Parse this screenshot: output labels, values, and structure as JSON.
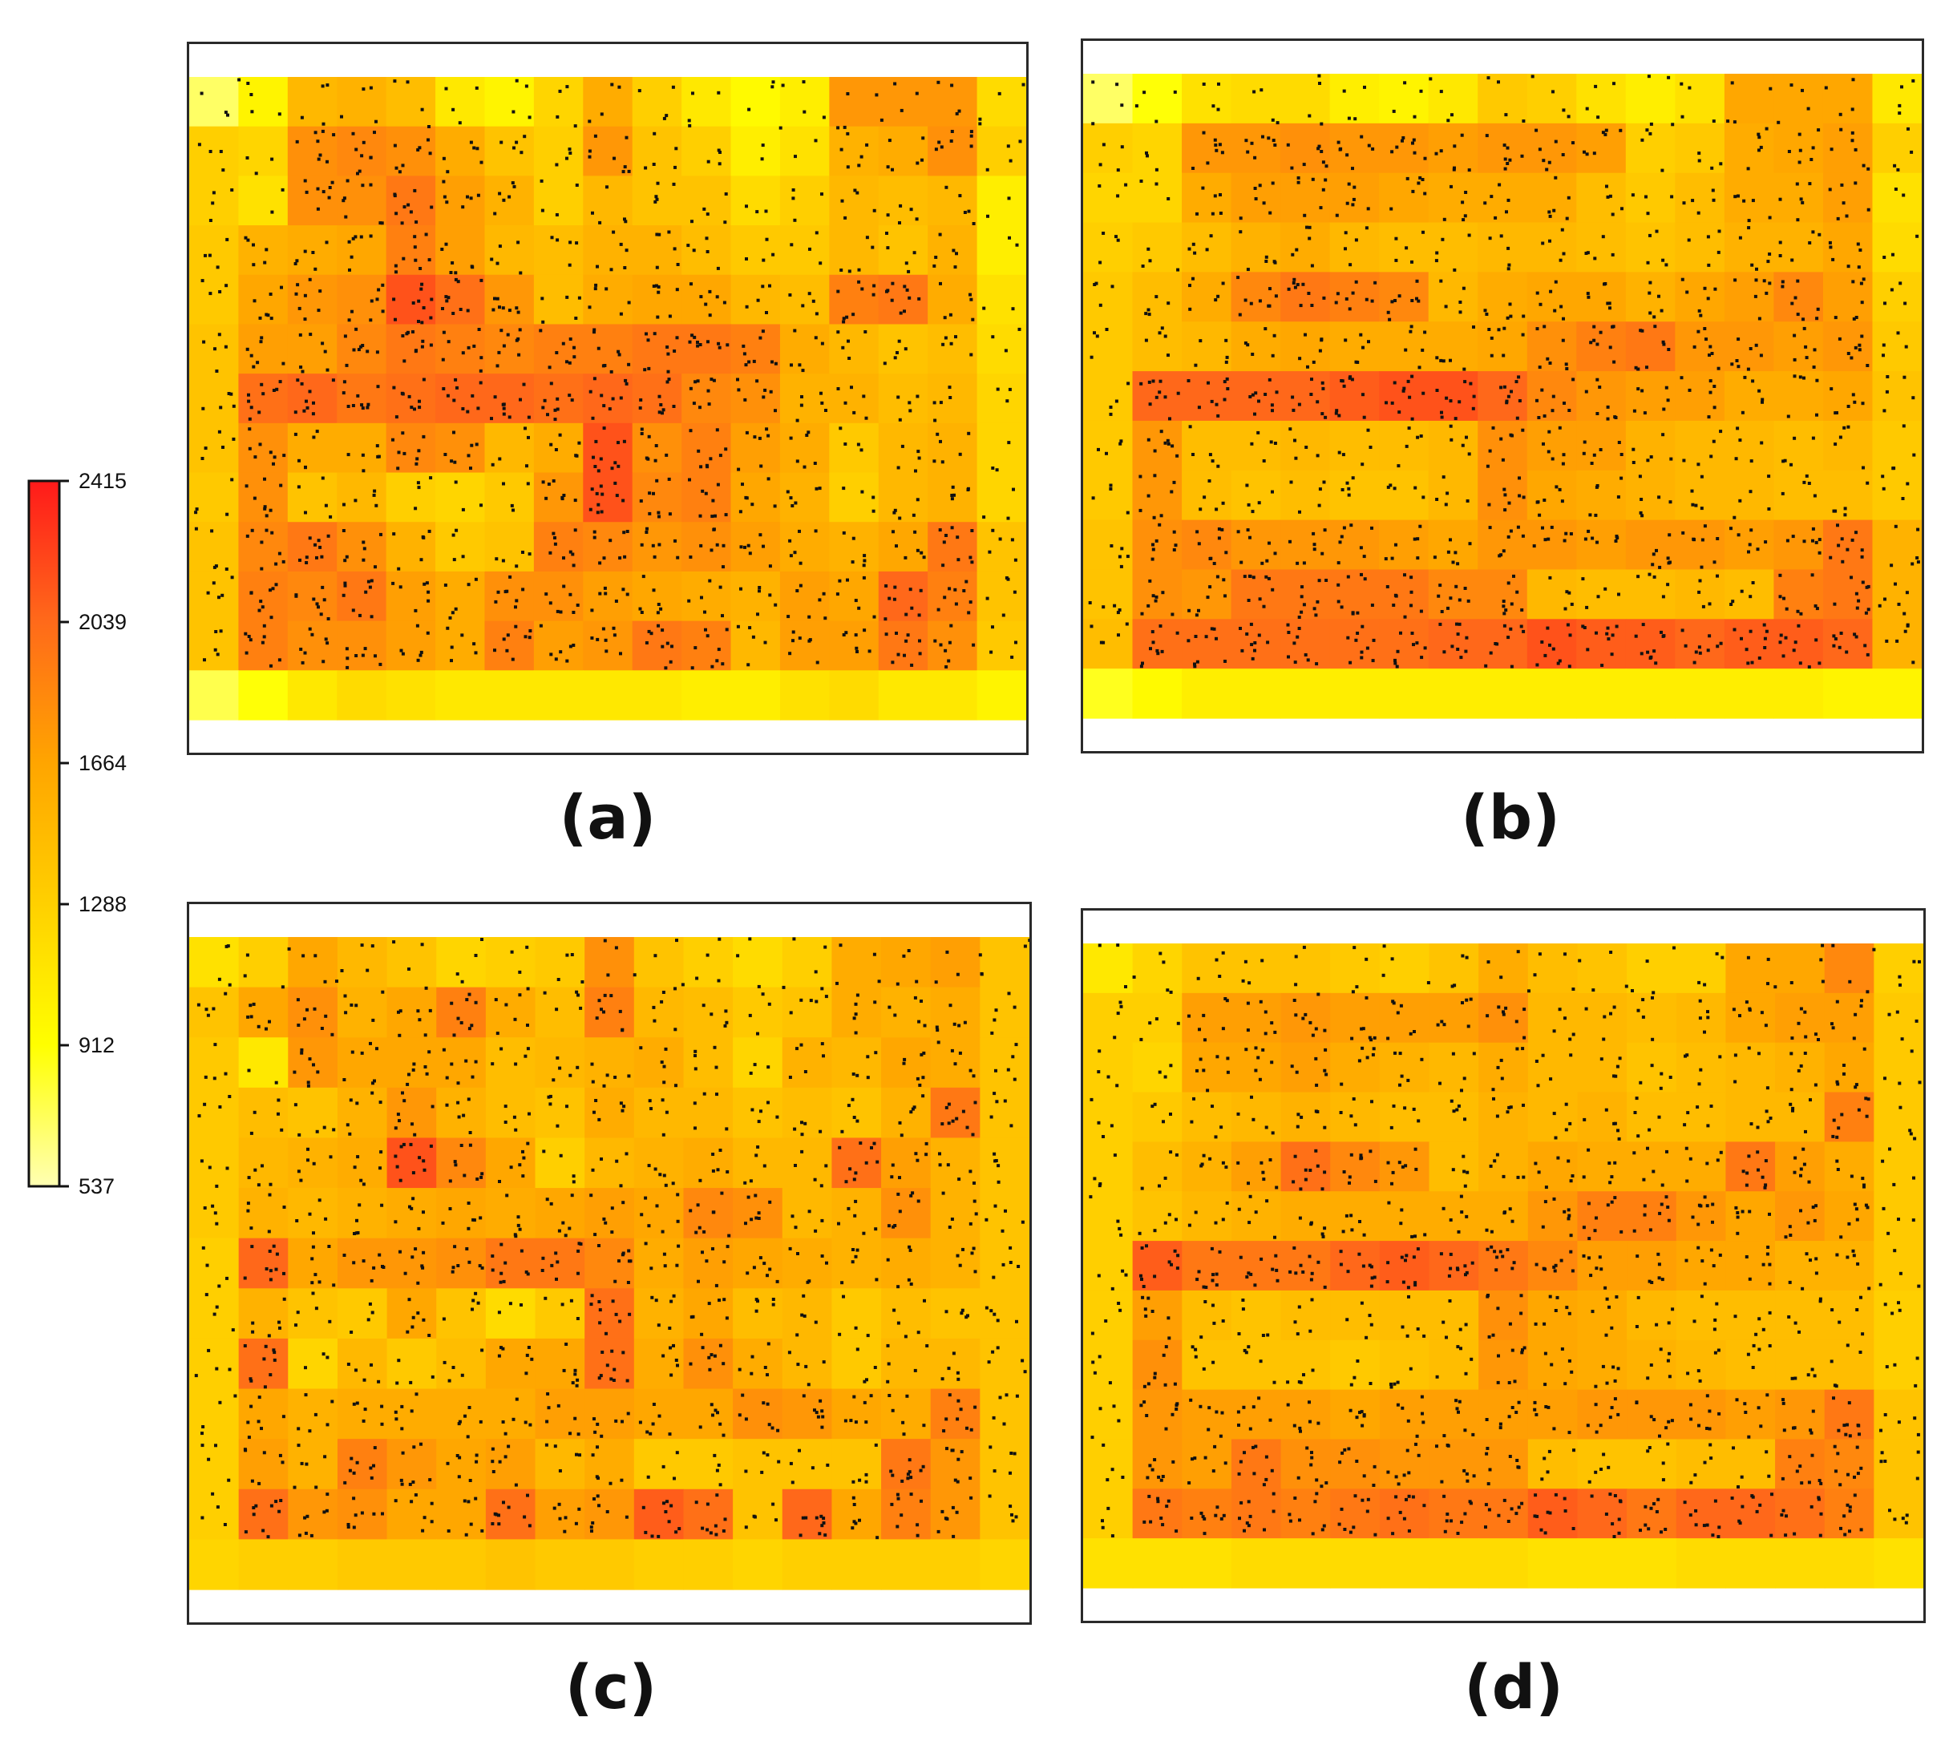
{
  "colorbar": {
    "min": 537,
    "max": 2415,
    "ticks": [
      "2415",
      "2039",
      "1664",
      "1288",
      "912",
      "537"
    ],
    "colors": [
      "#ffffb3",
      "#ffff00",
      "#ffd000",
      "#ffa500",
      "#ff6a1a",
      "#ff1a1a"
    ]
  },
  "chart_data": [
    {
      "type": "heatmap",
      "label": "(a)",
      "ncols": 17,
      "nrows": 13,
      "range": [
        537,
        2415
      ],
      "values": [
        [
          700,
          1000,
          1500,
          1550,
          1450,
          1100,
          1000,
          1250,
          1600,
          1300,
          1100,
          950,
          1050,
          1750,
          1750,
          1750,
          1200
        ],
        [
          1300,
          1250,
          1800,
          1850,
          1800,
          1600,
          1400,
          1300,
          1750,
          1400,
          1300,
          1050,
          1150,
          1550,
          1600,
          1800,
          1300
        ],
        [
          1300,
          1150,
          1800,
          1800,
          1950,
          1700,
          1550,
          1300,
          1500,
          1400,
          1400,
          1200,
          1300,
          1500,
          1450,
          1500,
          1050
        ],
        [
          1350,
          1550,
          1600,
          1650,
          1900,
          1700,
          1500,
          1450,
          1550,
          1550,
          1450,
          1350,
          1350,
          1500,
          1400,
          1550,
          1050
        ],
        [
          1350,
          1650,
          1750,
          1800,
          2150,
          2000,
          1750,
          1450,
          1600,
          1650,
          1650,
          1500,
          1450,
          1900,
          1950,
          1600,
          1150
        ],
        [
          1400,
          1700,
          1700,
          1850,
          1950,
          1900,
          1850,
          1900,
          1900,
          1950,
          1950,
          1900,
          1600,
          1500,
          1400,
          1450,
          1200
        ],
        [
          1400,
          2000,
          2050,
          1950,
          2000,
          2050,
          2050,
          2000,
          2050,
          2000,
          1850,
          1800,
          1550,
          1550,
          1450,
          1500,
          1250
        ],
        [
          1400,
          1800,
          1600,
          1600,
          1850,
          1800,
          1500,
          1600,
          2150,
          1800,
          1900,
          1700,
          1600,
          1350,
          1500,
          1550,
          1250
        ],
        [
          1350,
          1800,
          1400,
          1500,
          1300,
          1250,
          1350,
          1750,
          2150,
          1850,
          1900,
          1650,
          1550,
          1300,
          1500,
          1550,
          1250
        ],
        [
          1400,
          1850,
          1950,
          1800,
          1550,
          1350,
          1400,
          1900,
          1850,
          1750,
          1800,
          1700,
          1600,
          1550,
          1650,
          1950,
          1400
        ],
        [
          1400,
          1900,
          1850,
          1950,
          1700,
          1600,
          1800,
          1800,
          1700,
          1650,
          1600,
          1550,
          1700,
          1650,
          2050,
          1900,
          1400
        ],
        [
          1400,
          1900,
          1800,
          1800,
          1700,
          1600,
          1900,
          1700,
          1750,
          1950,
          1900,
          1500,
          1700,
          1700,
          1950,
          1800,
          1350
        ],
        [
          750,
          900,
          1100,
          1200,
          1150,
          1100,
          1100,
          1100,
          1100,
          1100,
          1050,
          1050,
          1150,
          1200,
          1100,
          1100,
          1000
        ]
      ]
    },
    {
      "type": "heatmap",
      "label": "(b)",
      "ncols": 17,
      "nrows": 13,
      "range": [
        537,
        2415
      ],
      "values": [
        [
          700,
          900,
          1150,
          1200,
          1200,
          1050,
          1000,
          1100,
          1350,
          1300,
          1150,
          1050,
          1150,
          1650,
          1650,
          1650,
          1100
        ],
        [
          1300,
          1250,
          1750,
          1750,
          1800,
          1750,
          1750,
          1700,
          1750,
          1750,
          1700,
          1300,
          1350,
          1600,
          1650,
          1700,
          1300
        ],
        [
          1250,
          1250,
          1600,
          1700,
          1700,
          1700,
          1650,
          1600,
          1600,
          1600,
          1450,
          1350,
          1450,
          1600,
          1600,
          1700,
          1150
        ],
        [
          1300,
          1350,
          1450,
          1550,
          1600,
          1500,
          1450,
          1450,
          1500,
          1500,
          1450,
          1400,
          1450,
          1550,
          1550,
          1650,
          1200
        ],
        [
          1350,
          1450,
          1600,
          1850,
          1950,
          1900,
          1850,
          1500,
          1600,
          1650,
          1650,
          1550,
          1650,
          1700,
          1850,
          1700,
          1300
        ],
        [
          1350,
          1450,
          1500,
          1600,
          1650,
          1600,
          1600,
          1600,
          1650,
          1800,
          1900,
          1950,
          1750,
          1750,
          1700,
          1750,
          1350
        ],
        [
          1350,
          2050,
          2050,
          2050,
          2050,
          2100,
          2150,
          2150,
          2050,
          1850,
          1750,
          1700,
          1700,
          1600,
          1600,
          1650,
          1400
        ],
        [
          1350,
          1750,
          1450,
          1450,
          1500,
          1450,
          1450,
          1500,
          1800,
          1700,
          1700,
          1550,
          1500,
          1500,
          1450,
          1500,
          1350
        ],
        [
          1350,
          1750,
          1450,
          1400,
          1450,
          1400,
          1400,
          1500,
          1800,
          1650,
          1600,
          1550,
          1500,
          1500,
          1450,
          1450,
          1350
        ],
        [
          1400,
          1800,
          1850,
          1750,
          1750,
          1750,
          1700,
          1650,
          1750,
          1750,
          1700,
          1750,
          1750,
          1700,
          1750,
          1950,
          1550
        ],
        [
          1400,
          1800,
          1750,
          1950,
          1950,
          1950,
          1950,
          1850,
          1850,
          1500,
          1450,
          1450,
          1500,
          1450,
          1900,
          1950,
          1550
        ],
        [
          1450,
          2000,
          2000,
          2000,
          2000,
          2000,
          2000,
          2050,
          2050,
          2150,
          2100,
          2100,
          2050,
          2100,
          2100,
          2050,
          1550
        ],
        [
          850,
          950,
          1050,
          1050,
          1050,
          1050,
          1050,
          1050,
          1050,
          1050,
          1050,
          1050,
          1050,
          1050,
          1050,
          1000,
          1000
        ]
      ]
    },
    {
      "type": "heatmap",
      "label": "(c)",
      "ncols": 17,
      "nrows": 13,
      "range": [
        537,
        2415
      ],
      "values": [
        [
          1150,
          1300,
          1650,
          1500,
          1400,
          1250,
          1300,
          1350,
          1800,
          1400,
          1300,
          1200,
          1300,
          1600,
          1650,
          1700,
          1400
        ],
        [
          1400,
          1650,
          1800,
          1550,
          1650,
          1900,
          1600,
          1450,
          1900,
          1500,
          1450,
          1350,
          1400,
          1600,
          1550,
          1600,
          1400
        ],
        [
          1350,
          1100,
          1750,
          1650,
          1650,
          1650,
          1450,
          1500,
          1550,
          1600,
          1450,
          1250,
          1550,
          1500,
          1650,
          1600,
          1400
        ],
        [
          1350,
          1450,
          1400,
          1550,
          1750,
          1550,
          1450,
          1400,
          1600,
          1500,
          1500,
          1400,
          1450,
          1400,
          1550,
          1950,
          1400
        ],
        [
          1350,
          1500,
          1550,
          1600,
          2150,
          1850,
          1650,
          1300,
          1500,
          1550,
          1600,
          1500,
          1500,
          2000,
          1700,
          1550,
          1400
        ],
        [
          1350,
          1550,
          1500,
          1550,
          1600,
          1650,
          1600,
          1650,
          1700,
          1650,
          1850,
          1800,
          1500,
          1550,
          1800,
          1550,
          1400
        ],
        [
          1300,
          2050,
          1650,
          1750,
          1750,
          1800,
          1950,
          1950,
          1850,
          1600,
          1700,
          1650,
          1600,
          1550,
          1600,
          1550,
          1400
        ],
        [
          1300,
          1550,
          1400,
          1350,
          1650,
          1400,
          1200,
          1350,
          2000,
          1550,
          1650,
          1450,
          1500,
          1350,
          1450,
          1400,
          1400
        ],
        [
          1300,
          2000,
          1250,
          1500,
          1350,
          1450,
          1650,
          1650,
          2000,
          1600,
          1800,
          1600,
          1500,
          1350,
          1500,
          1500,
          1400
        ],
        [
          1300,
          1650,
          1550,
          1600,
          1600,
          1600,
          1600,
          1700,
          1700,
          1650,
          1650,
          1800,
          1750,
          1650,
          1600,
          1900,
          1400
        ],
        [
          1300,
          1700,
          1550,
          1900,
          1750,
          1650,
          1700,
          1500,
          1600,
          1350,
          1350,
          1400,
          1400,
          1400,
          1950,
          1750,
          1400
        ],
        [
          1300,
          2000,
          1750,
          1800,
          1650,
          1650,
          2000,
          1700,
          1750,
          2100,
          2000,
          1400,
          2050,
          1650,
          1900,
          1750,
          1400
        ],
        [
          1250,
          1300,
          1300,
          1350,
          1350,
          1350,
          1400,
          1350,
          1350,
          1300,
          1300,
          1250,
          1300,
          1300,
          1300,
          1300,
          1250
        ]
      ]
    },
    {
      "type": "heatmap",
      "label": "(d)",
      "ncols": 17,
      "nrows": 13,
      "range": [
        537,
        2415
      ],
      "values": [
        [
          1100,
          1250,
          1400,
          1400,
          1400,
          1350,
          1300,
          1400,
          1600,
          1450,
          1400,
          1300,
          1300,
          1650,
          1650,
          1850,
          1300
        ],
        [
          1300,
          1300,
          1700,
          1700,
          1750,
          1700,
          1700,
          1700,
          1800,
          1500,
          1500,
          1450,
          1500,
          1650,
          1700,
          1700,
          1350
        ],
        [
          1300,
          1250,
          1650,
          1650,
          1700,
          1600,
          1550,
          1500,
          1600,
          1500,
          1500,
          1400,
          1450,
          1500,
          1550,
          1650,
          1350
        ],
        [
          1300,
          1350,
          1450,
          1500,
          1550,
          1500,
          1450,
          1450,
          1550,
          1500,
          1550,
          1450,
          1450,
          1500,
          1500,
          1900,
          1350
        ],
        [
          1300,
          1450,
          1550,
          1700,
          2000,
          1850,
          1750,
          1450,
          1550,
          1650,
          1600,
          1600,
          1600,
          1950,
          1700,
          1600,
          1350
        ],
        [
          1300,
          1400,
          1500,
          1550,
          1600,
          1600,
          1600,
          1600,
          1600,
          1750,
          1900,
          1900,
          1750,
          1650,
          1750,
          1650,
          1350
        ],
        [
          1300,
          2100,
          1950,
          1950,
          1950,
          2050,
          2100,
          2050,
          1950,
          1850,
          1700,
          1700,
          1650,
          1650,
          1550,
          1550,
          1350
        ],
        [
          1300,
          1700,
          1450,
          1400,
          1450,
          1450,
          1450,
          1450,
          1800,
          1650,
          1600,
          1500,
          1450,
          1450,
          1450,
          1450,
          1300
        ],
        [
          1300,
          1800,
          1400,
          1400,
          1400,
          1350,
          1400,
          1450,
          1750,
          1650,
          1600,
          1550,
          1500,
          1450,
          1450,
          1450,
          1300
        ],
        [
          1300,
          1750,
          1700,
          1700,
          1700,
          1650,
          1700,
          1700,
          1700,
          1700,
          1750,
          1750,
          1750,
          1700,
          1750,
          1950,
          1400
        ],
        [
          1300,
          1750,
          1700,
          1950,
          1800,
          1800,
          1750,
          1750,
          1750,
          1450,
          1400,
          1400,
          1450,
          1450,
          1900,
          1850,
          1400
        ],
        [
          1300,
          1950,
          1900,
          1950,
          1900,
          1950,
          2000,
          1950,
          1950,
          2100,
          2050,
          1950,
          2050,
          2050,
          2000,
          1900,
          1400
        ],
        [
          1150,
          1150,
          1150,
          1200,
          1200,
          1200,
          1200,
          1200,
          1200,
          1150,
          1150,
          1150,
          1200,
          1200,
          1200,
          1200,
          1150
        ]
      ]
    }
  ]
}
